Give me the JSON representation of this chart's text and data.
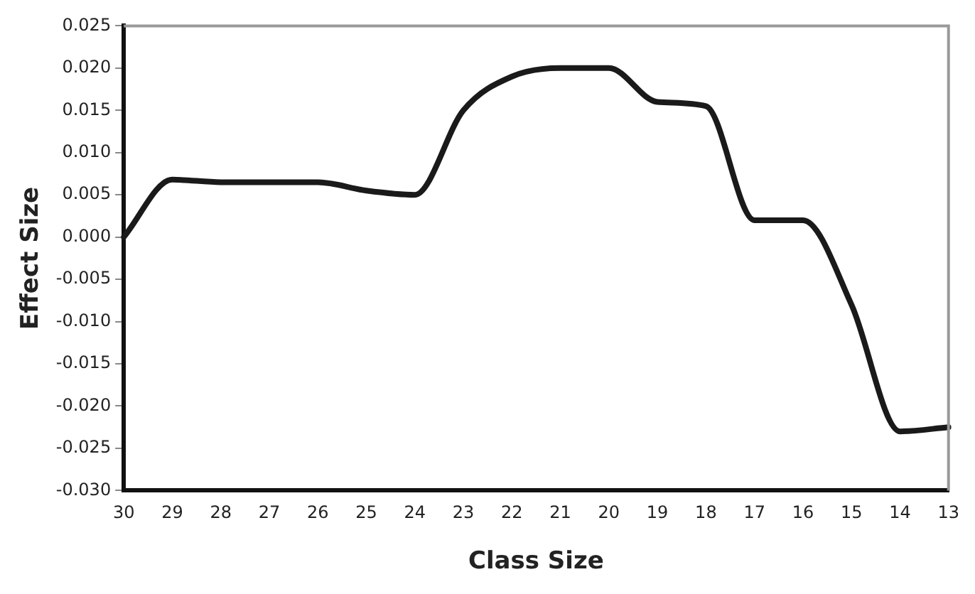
{
  "chart_data": {
    "type": "line",
    "xlabel": "Class Size",
    "ylabel": "Effect Size",
    "categories": [
      "30",
      "29",
      "28",
      "27",
      "26",
      "25",
      "24",
      "23",
      "22",
      "21",
      "20",
      "19",
      "18",
      "17",
      "16",
      "15",
      "14",
      "13"
    ],
    "series": [
      {
        "color": "#1a1a1a",
        "values": [
          0.0,
          0.0068,
          0.0065,
          0.0065,
          0.0065,
          0.0055,
          0.005,
          0.015,
          0.019,
          0.02,
          0.02,
          0.016,
          0.0155,
          0.002,
          0.002,
          -0.008,
          -0.023,
          -0.0225
        ]
      }
    ],
    "ylim": [
      -0.03,
      0.025
    ],
    "yticks": [
      {
        "value": -0.03,
        "label": "-0.030"
      },
      {
        "value": -0.025,
        "label": "-0.025"
      },
      {
        "value": -0.02,
        "label": "-0.020"
      },
      {
        "value": -0.015,
        "label": "-0.015"
      },
      {
        "value": -0.01,
        "label": "-0.010"
      },
      {
        "value": -0.005,
        "label": "-0.005"
      },
      {
        "value": 0,
        "label": "0.000"
      },
      {
        "value": 0.005,
        "label": "0.005"
      },
      {
        "value": 0.01,
        "label": "0.010"
      },
      {
        "value": 0.015,
        "label": "0.015"
      },
      {
        "value": 0.02,
        "label": "0.020"
      },
      {
        "value": 0.025,
        "label": "0.025"
      }
    ],
    "grid": false,
    "legend": false,
    "marker": "none",
    "line_style": "solid"
  }
}
